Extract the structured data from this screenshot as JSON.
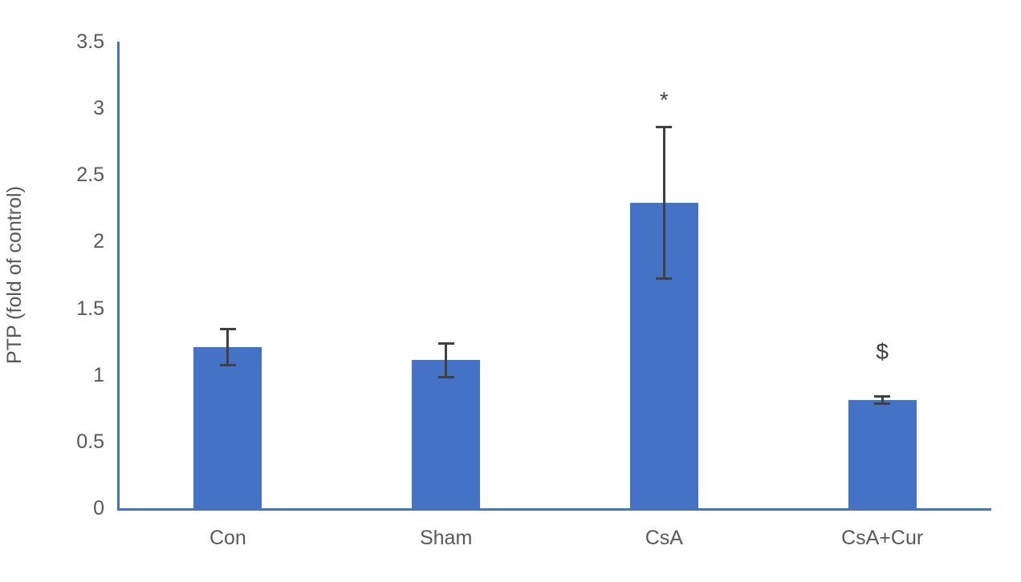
{
  "chart_data": {
    "type": "bar",
    "categories": [
      "Con",
      "Sham",
      "CsA",
      "CsA+Cur"
    ],
    "values": [
      1.21,
      1.11,
      2.29,
      0.81
    ],
    "errors": [
      0.14,
      0.13,
      0.57,
      0.03
    ],
    "annotations": [
      {
        "text": "*",
        "category_index": 2,
        "y": 3.06
      },
      {
        "text": "$",
        "category_index": 3,
        "y": 1.17
      }
    ],
    "title": "",
    "xlabel": "",
    "ylabel": "PTP (fold of control)",
    "ylim": [
      0,
      3.5
    ],
    "ytick_step": 0.5,
    "yticks": [
      "0",
      "0.5",
      "1",
      "1.5",
      "2",
      "2.5",
      "3",
      "3.5"
    ],
    "grid": "off",
    "legend": "none",
    "bar_color": "#4472C4",
    "axis_color": "#4472C4",
    "error_bar_color": "#404040",
    "text_color": "#595959"
  }
}
